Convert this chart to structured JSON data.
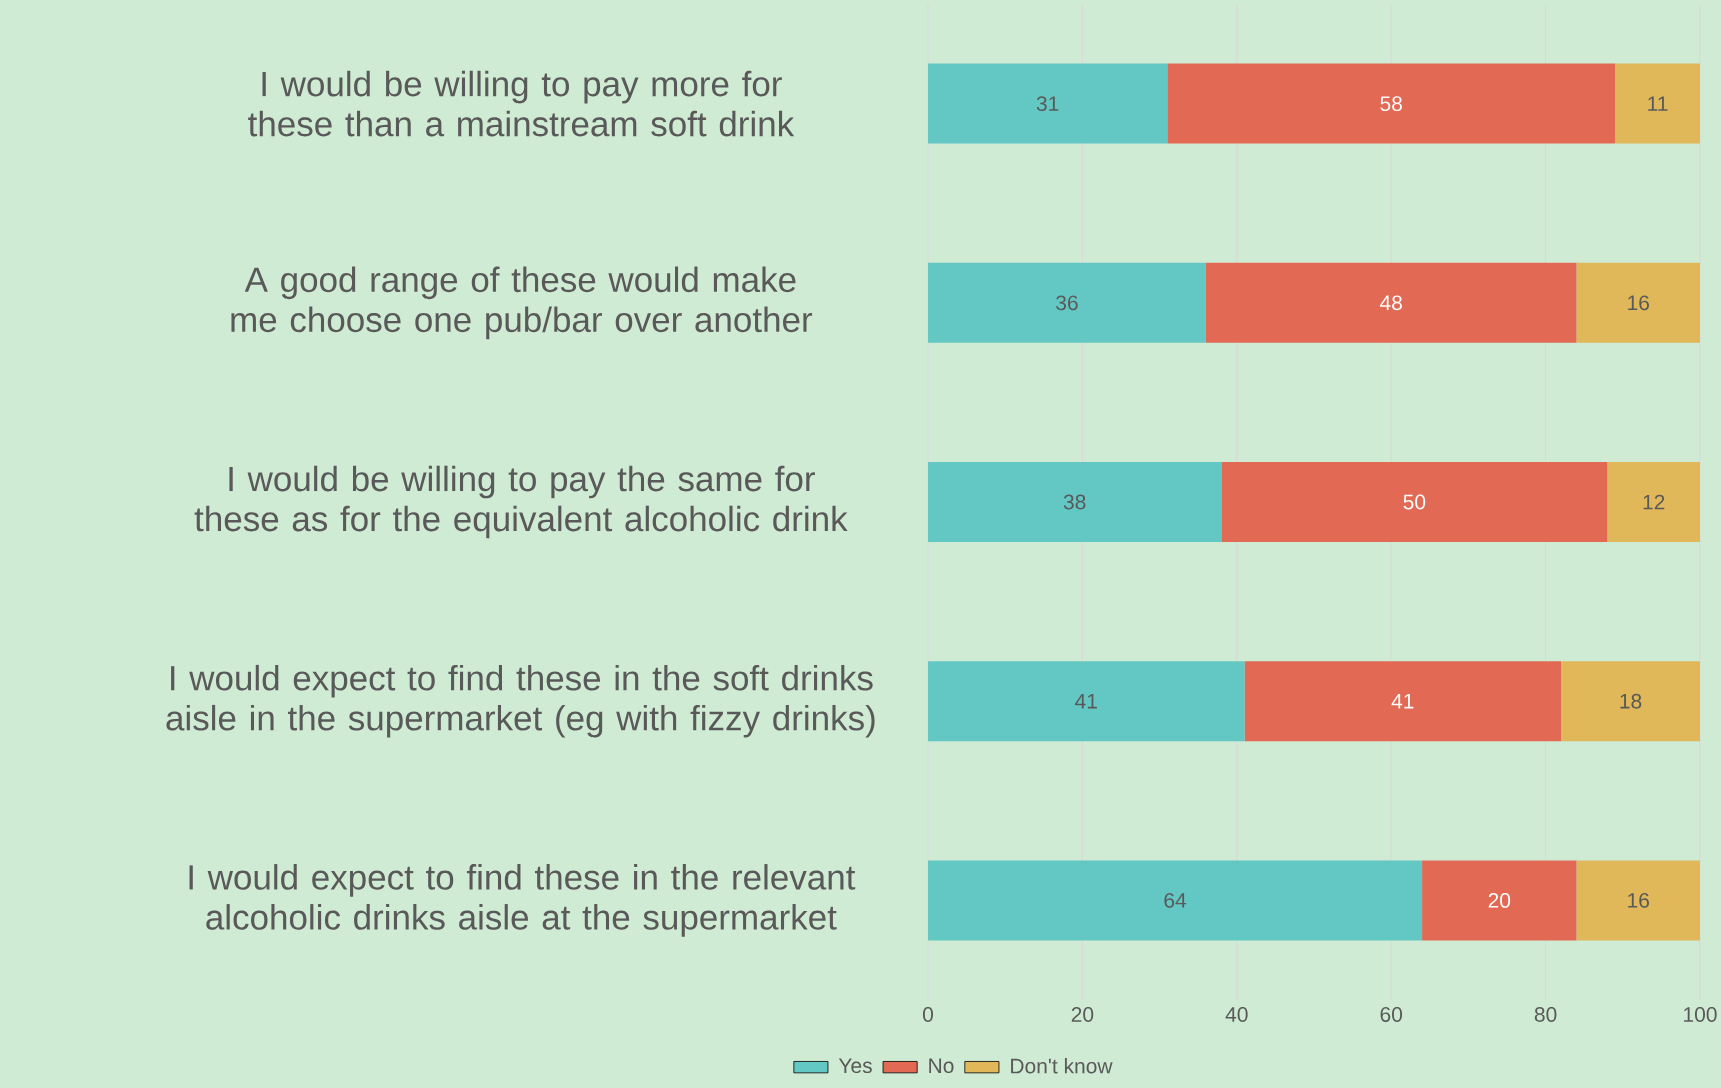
{
  "chart_data": {
    "type": "bar",
    "orientation": "horizontal",
    "stacked": true,
    "categories": [
      "I would be willing to pay more for these than a mainstream soft drink",
      "A good range of these would make me choose one pub/bar over another",
      "I would be willing to pay the same for these as for the equivalent alcoholic drink",
      "I would expect to find these in the soft drinks aisle in the supermarket (eg with fizzy drinks)",
      "I would expect to find these in the relevant alcoholic drinks aisle at the supermarket"
    ],
    "series": [
      {
        "name": "Yes",
        "color": "#63c8c4",
        "values": [
          31,
          36,
          38,
          41,
          64
        ]
      },
      {
        "name": "No",
        "color": "#e26a54",
        "values": [
          58,
          48,
          50,
          41,
          20
        ]
      },
      {
        "name": "Don't know",
        "color": "#e0b85a",
        "values": [
          11,
          16,
          12,
          18,
          16
        ]
      }
    ],
    "xlim": [
      0,
      100
    ],
    "xticks": [
      0,
      20,
      40,
      60,
      80,
      100
    ],
    "grid": "x",
    "legend": "bottom",
    "data_labels": true
  }
}
